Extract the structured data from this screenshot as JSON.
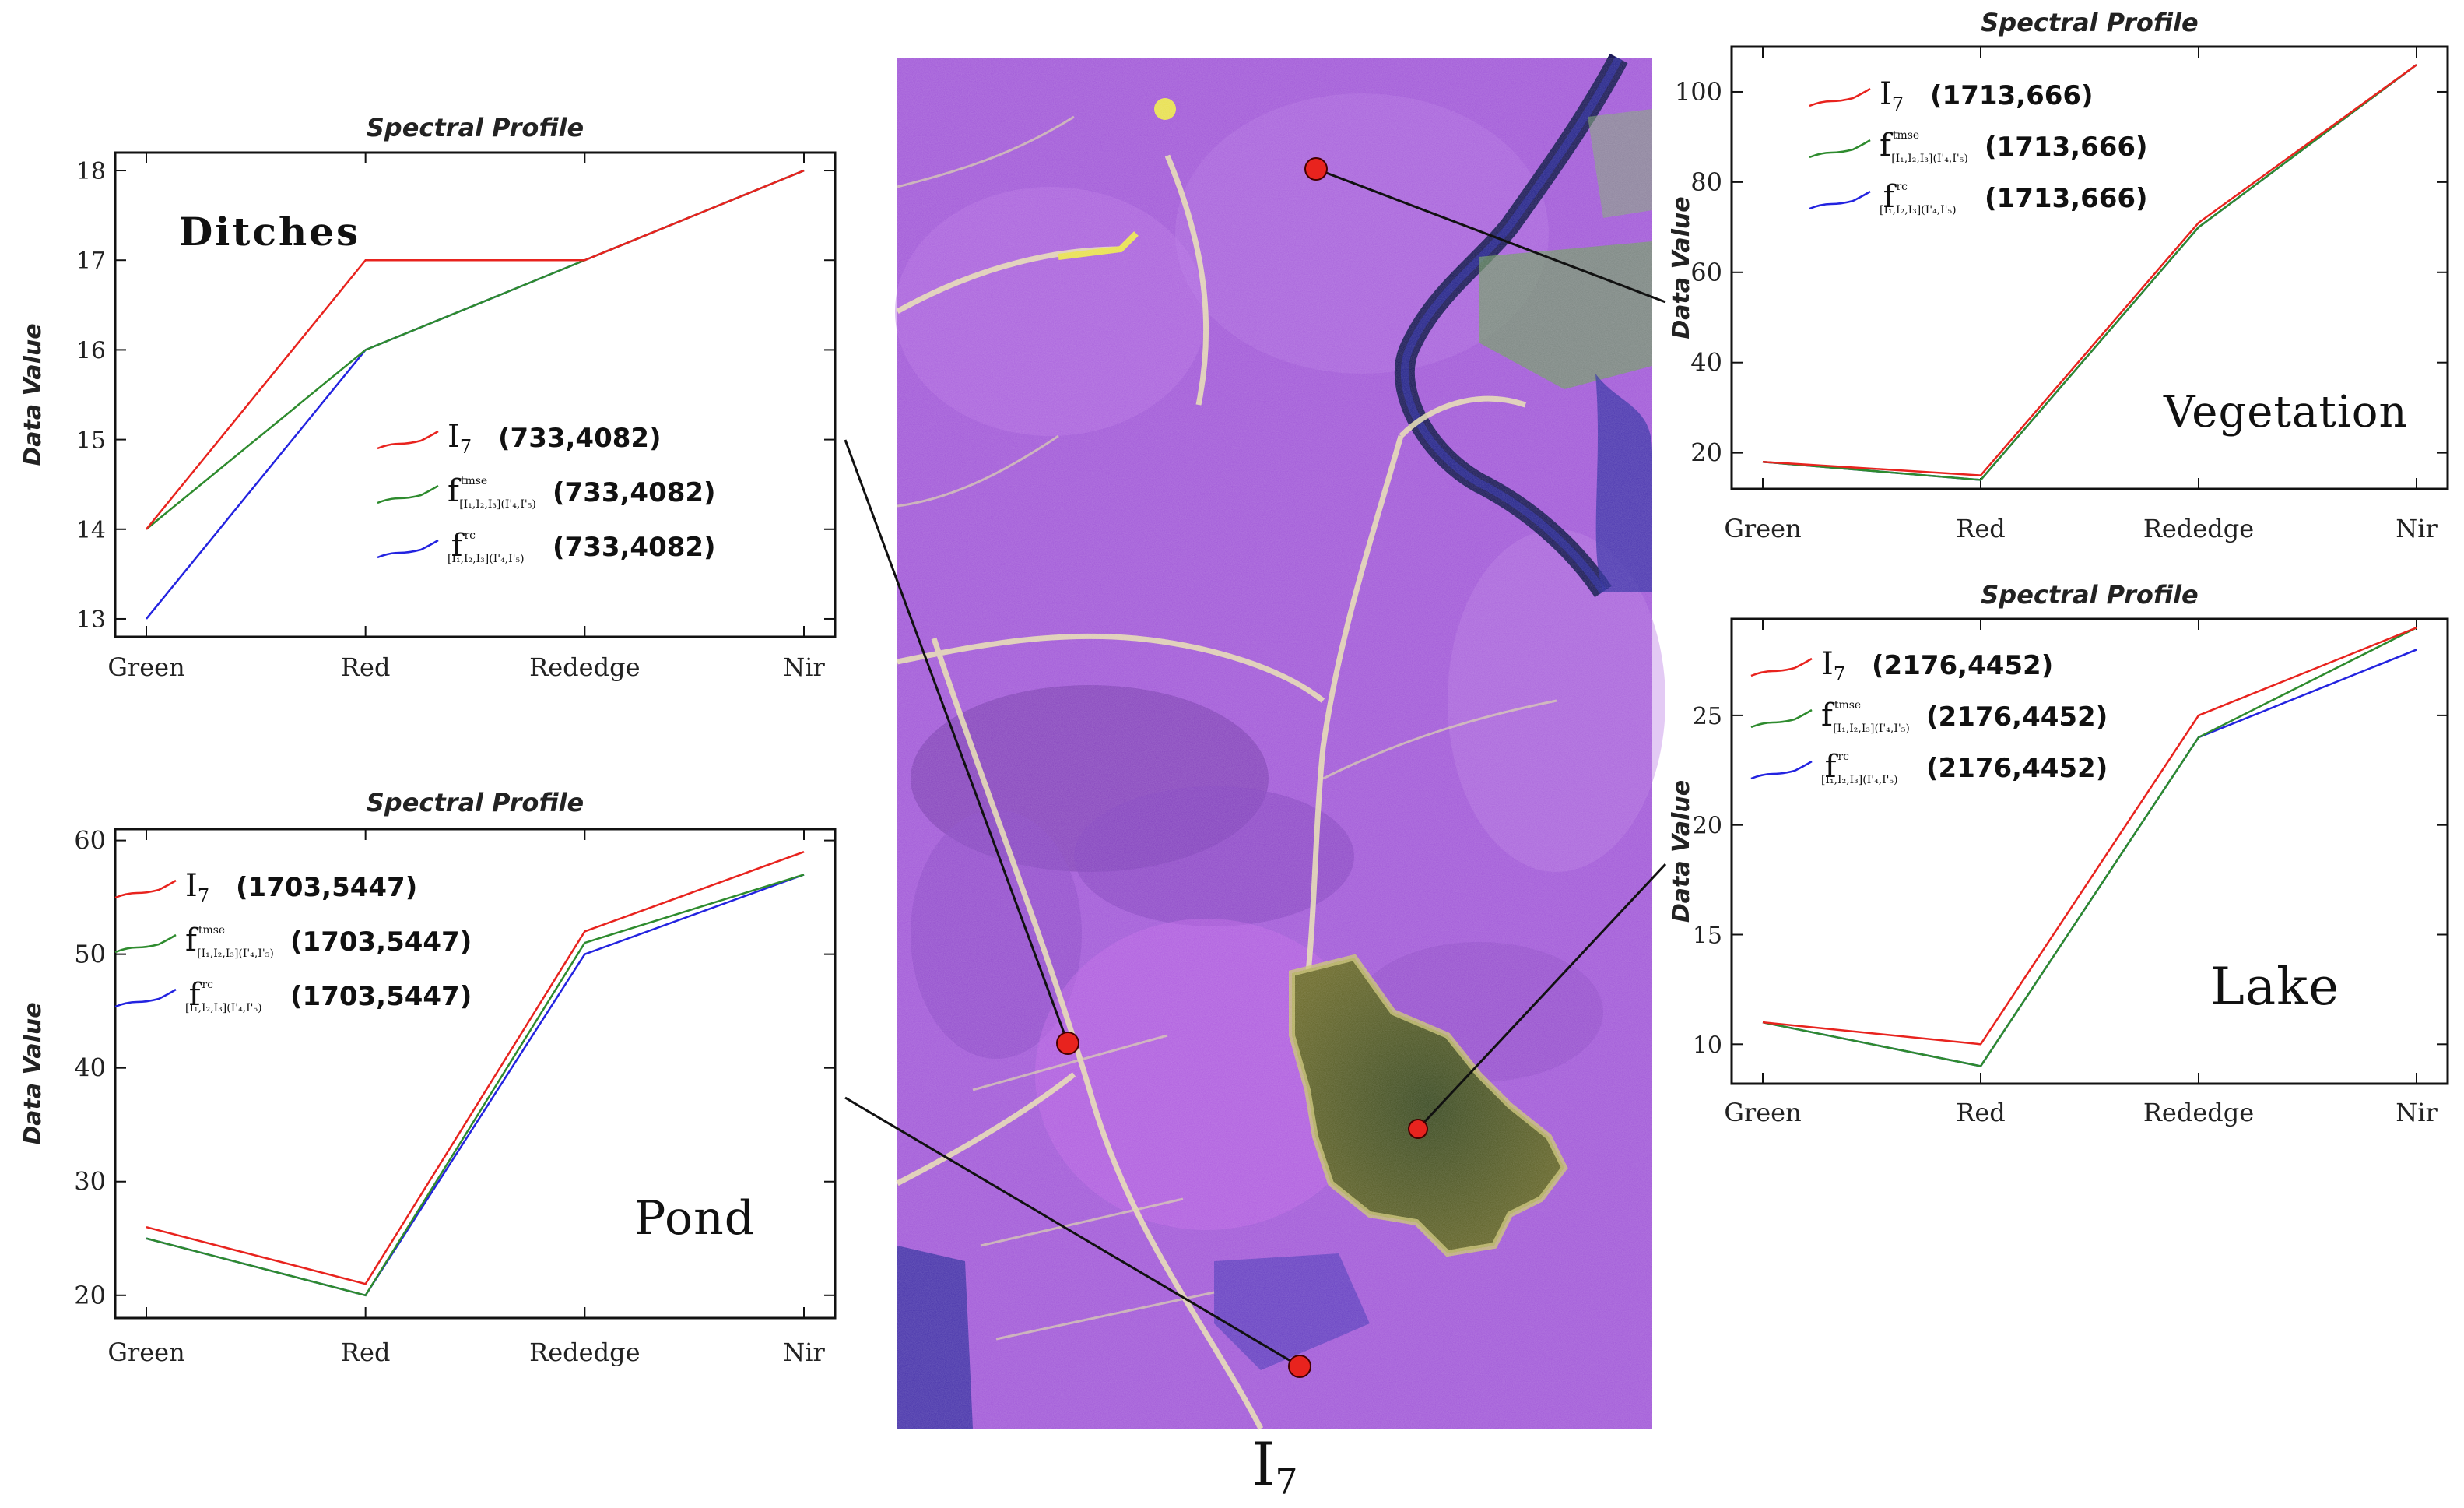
{
  "image_caption": "I",
  "image_caption_sub": "7",
  "legend_symbols": [
    {
      "main": "I",
      "sub": "7",
      "sup": ""
    },
    {
      "main": "f",
      "sub": "[I₁,I₂,I₃](I'₄,I'₅)",
      "sup": "tmse"
    },
    {
      "main": "f",
      "sub": "[I₁,I₂,I₃](I'₄,I'₅)",
      "sup": "rc"
    }
  ],
  "colors": {
    "series_I7": "#e8231e",
    "series_tmse": "#2e8b2e",
    "series_rc": "#2323e0",
    "marker": "#e8231e"
  },
  "chart_data": [
    {
      "id": "ditches",
      "type": "line",
      "title": "Spectral Profile",
      "name": "Ditches",
      "xlabel": "",
      "ylabel": "Data Value",
      "categories": [
        "Green",
        "Red",
        "Rededge",
        "Nir"
      ],
      "ylim": [
        12.8,
        18.2
      ],
      "yticks": [
        13,
        14,
        15,
        16,
        17,
        18
      ],
      "series": [
        {
          "name": "I7",
          "coord": "(733,4082)",
          "values": [
            14,
            17,
            17,
            18
          ]
        },
        {
          "name": "f tmse",
          "coord": "(733,4082)",
          "values": [
            14,
            16,
            17,
            18
          ]
        },
        {
          "name": "f rc",
          "coord": "(733,4082)",
          "values": [
            13,
            16,
            17,
            18
          ]
        }
      ]
    },
    {
      "id": "pond",
      "type": "line",
      "title": "Spectral Profile",
      "name": "Pond",
      "xlabel": "",
      "ylabel": "Data Value",
      "categories": [
        "Green",
        "Red",
        "Rededge",
        "Nir"
      ],
      "ylim": [
        18,
        61
      ],
      "yticks": [
        20,
        30,
        40,
        50,
        60
      ],
      "series": [
        {
          "name": "I7",
          "coord": "(1703,5447)",
          "values": [
            26,
            21,
            52,
            59
          ]
        },
        {
          "name": "f tmse",
          "coord": "(1703,5447)",
          "values": [
            25,
            20,
            51,
            57
          ]
        },
        {
          "name": "f rc",
          "coord": "(1703,5447)",
          "values": [
            25,
            20,
            50,
            57
          ]
        }
      ]
    },
    {
      "id": "vegetation",
      "type": "line",
      "title": "Spectral Profile",
      "name": "Vegetation",
      "xlabel": "",
      "ylabel": "Data Value",
      "categories": [
        "Green",
        "Red",
        "Rededge",
        "Nir"
      ],
      "ylim": [
        12,
        110
      ],
      "yticks": [
        20,
        40,
        60,
        80,
        100
      ],
      "series": [
        {
          "name": "I7",
          "coord": "(1713,666)",
          "values": [
            18,
            15,
            71,
            106
          ]
        },
        {
          "name": "f tmse",
          "coord": "(1713,666)",
          "values": [
            18,
            14,
            70,
            106
          ]
        },
        {
          "name": "f rc",
          "coord": "(1713,666)",
          "values": [
            18,
            14,
            70,
            106
          ]
        }
      ]
    },
    {
      "id": "lake",
      "type": "line",
      "title": "Spectral Profile",
      "name": "Lake",
      "xlabel": "",
      "ylabel": "Data Value",
      "categories": [
        "Green",
        "Red",
        "Rededge",
        "Nir"
      ],
      "ylim": [
        8.2,
        29.4
      ],
      "yticks": [
        10,
        15,
        20,
        25
      ],
      "series": [
        {
          "name": "I7",
          "coord": "(2176,4452)",
          "values": [
            11,
            10,
            25,
            29
          ]
        },
        {
          "name": "f tmse",
          "coord": "(2176,4452)",
          "values": [
            11,
            9,
            24,
            29
          ]
        },
        {
          "name": "f rc",
          "coord": "(2176,4452)",
          "values": [
            11,
            9,
            24,
            28
          ]
        }
      ]
    }
  ]
}
